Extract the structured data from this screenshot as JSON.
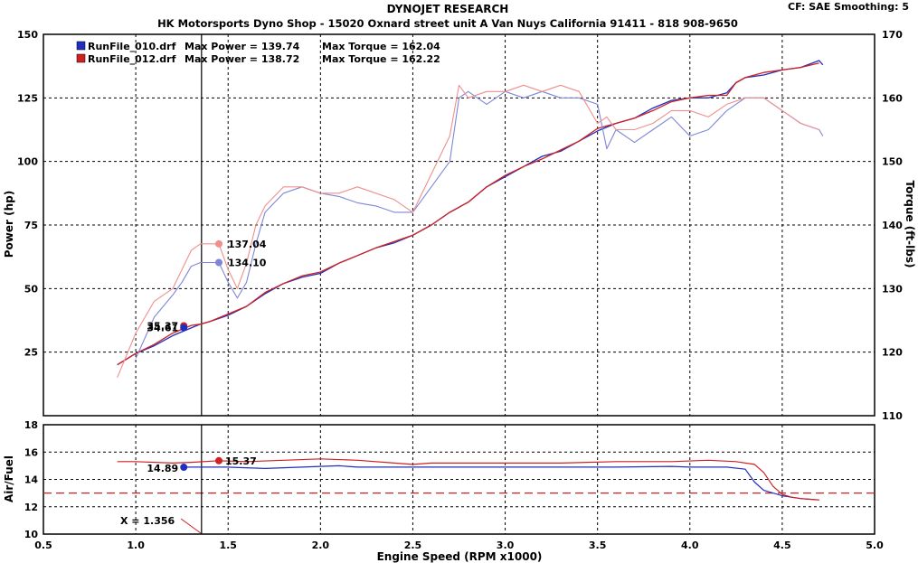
{
  "header": {
    "title": "DYNOJET RESEARCH",
    "subtitle": "HK Motorsports Dyno Shop - 15020 Oxnard street unit A Van Nuys California 91411 - 818 908-9650",
    "settings": "CF: SAE  Smoothing: 5"
  },
  "legend": [
    {
      "file": "RunFile_010.drf",
      "power_text": "Max Power = 139.74",
      "torque_text": "Max Torque = 162.04",
      "color": "#1f2fbf",
      "light_color": "#7f86d8"
    },
    {
      "file": "RunFile_012.drf",
      "power_text": "Max Power = 138.72",
      "torque_text": "Max Torque = 162.22",
      "color": "#d02020",
      "light_color": "#ef8f8f"
    }
  ],
  "chart_data": [
    {
      "type": "line",
      "name": "power-torque",
      "xlim": [
        0.5,
        5.0
      ],
      "ylim": [
        0,
        150
      ],
      "y2lim": [
        110,
        170
      ],
      "ylabel": "Power (hp)",
      "y2label": "Torque (ft-lbs)",
      "x_ticks": [
        "0.5",
        "1.0",
        "1.5",
        "2.0",
        "2.5",
        "3.0",
        "3.5",
        "4.0",
        "4.5",
        "5.0"
      ],
      "y_ticks": [
        "150",
        "125",
        "100",
        "75",
        "50",
        "25"
      ],
      "y2_ticks": [
        "170",
        "160",
        "150",
        "140",
        "130",
        "120",
        "110"
      ],
      "grid": true,
      "cursor_x": 1.356,
      "series": [
        {
          "name": "RunFile_010.drf",
          "quantity": "power",
          "axis": "left",
          "x": [
            0.9,
            1.0,
            1.1,
            1.2,
            1.3,
            1.35,
            1.4,
            1.5,
            1.6,
            1.7,
            1.8,
            1.9,
            2.0,
            2.1,
            2.2,
            2.3,
            2.4,
            2.5,
            2.6,
            2.7,
            2.8,
            2.9,
            3.0,
            3.1,
            3.2,
            3.3,
            3.4,
            3.5,
            3.6,
            3.7,
            3.8,
            3.9,
            4.0,
            4.1,
            4.2,
            4.25,
            4.3,
            4.4,
            4.5,
            4.6,
            4.7,
            4.72
          ],
          "values": [
            20,
            24.5,
            27.5,
            31.5,
            34.5,
            36,
            37,
            39.5,
            43,
            48,
            52,
            54.5,
            56,
            60,
            63,
            66,
            68,
            71,
            75,
            80,
            84,
            90,
            94,
            98,
            102,
            104,
            108,
            112,
            115,
            117,
            121,
            124,
            125,
            125,
            127,
            131,
            133,
            134,
            136,
            137,
            139.7,
            138
          ]
        },
        {
          "name": "RunFile_012.drf",
          "quantity": "power",
          "axis": "left",
          "x": [
            0.9,
            1.0,
            1.1,
            1.2,
            1.3,
            1.35,
            1.4,
            1.5,
            1.6,
            1.7,
            1.8,
            1.9,
            2.0,
            2.1,
            2.2,
            2.3,
            2.4,
            2.5,
            2.6,
            2.7,
            2.8,
            2.9,
            3.0,
            3.1,
            3.2,
            3.3,
            3.4,
            3.5,
            3.6,
            3.7,
            3.8,
            3.9,
            4.0,
            4.1,
            4.2,
            4.25,
            4.3,
            4.4,
            4.5,
            4.6,
            4.7
          ],
          "values": [
            20,
            24.5,
            28,
            32.5,
            35.5,
            36,
            37,
            40,
            43,
            48.5,
            52,
            55,
            56.5,
            60,
            63,
            66,
            68.5,
            71,
            75,
            80,
            84,
            90,
            94.5,
            98,
            101,
            104.5,
            108,
            113,
            115,
            117,
            120,
            123.5,
            125,
            126,
            126,
            131,
            133,
            135,
            136,
            137,
            138.7
          ]
        },
        {
          "name": "RunFile_010.drf",
          "quantity": "torque",
          "axis": "right",
          "x": [
            1.0,
            1.1,
            1.2,
            1.25,
            1.3,
            1.35,
            1.4,
            1.45,
            1.5,
            1.55,
            1.6,
            1.65,
            1.7,
            1.8,
            1.9,
            2.0,
            2.1,
            2.2,
            2.3,
            2.4,
            2.5,
            2.6,
            2.7,
            2.75,
            2.8,
            2.9,
            3.0,
            3.1,
            3.2,
            3.3,
            3.4,
            3.5,
            3.55,
            3.6,
            3.7,
            3.8,
            3.9,
            4.0,
            4.1,
            4.2,
            4.3,
            4.4,
            4.5,
            4.6,
            4.7,
            4.72
          ],
          "values": [
            119,
            125.5,
            129,
            131,
            133.5,
            134.1,
            134.1,
            134.1,
            131,
            128.5,
            131,
            137,
            142,
            145,
            146,
            145,
            144.5,
            143.5,
            143,
            142,
            142,
            146,
            150,
            160,
            161,
            159,
            161,
            160,
            161,
            160,
            160,
            159,
            152,
            155,
            153,
            155,
            157,
            154,
            155,
            158,
            160,
            160,
            158,
            156,
            155,
            154
          ]
        },
        {
          "name": "RunFile_012.drf",
          "quantity": "torque",
          "axis": "right",
          "x": [
            0.9,
            1.0,
            1.1,
            1.2,
            1.25,
            1.3,
            1.35,
            1.4,
            1.45,
            1.5,
            1.55,
            1.6,
            1.65,
            1.7,
            1.8,
            1.9,
            2.0,
            2.1,
            2.2,
            2.3,
            2.4,
            2.5,
            2.6,
            2.7,
            2.75,
            2.8,
            2.9,
            3.0,
            3.1,
            3.2,
            3.3,
            3.4,
            3.5,
            3.55,
            3.6,
            3.7,
            3.8,
            3.9,
            4.0,
            4.1,
            4.2,
            4.3,
            4.4,
            4.5,
            4.6,
            4.7
          ],
          "values": [
            116,
            123,
            128,
            130,
            133,
            136,
            137.04,
            137.04,
            137.04,
            133,
            130,
            134,
            140,
            143,
            146,
            146,
            145,
            145,
            146,
            145,
            144,
            142,
            148,
            154,
            162,
            160,
            161,
            161,
            162,
            161,
            162,
            161,
            156,
            157,
            155,
            155,
            156,
            158,
            158,
            157,
            159,
            160,
            160,
            158,
            156,
            155
          ]
        }
      ],
      "annotations": [
        {
          "label": "137.04",
          "x": 1.45,
          "y": 137.04,
          "axis": "right",
          "color": "#ef8f8f"
        },
        {
          "label": "134.10",
          "x": 1.45,
          "y": 134.1,
          "axis": "right",
          "color": "#7f86d8"
        },
        {
          "label": "35.37",
          "x": 1.26,
          "y": 35.37,
          "axis": "left",
          "color": "#d02020"
        },
        {
          "label": "34.61",
          "x": 1.26,
          "y": 34.61,
          "axis": "left",
          "color": "#1f2fbf"
        }
      ]
    },
    {
      "type": "line",
      "name": "air-fuel",
      "xlim": [
        0.5,
        5.0
      ],
      "ylim": [
        10,
        18
      ],
      "xlabel": "Engine Speed (RPM x1000)",
      "ylabel": "Air/Fuel",
      "y_ticks": [
        "18",
        "16",
        "14",
        "12",
        "10"
      ],
      "grid": true,
      "reference_line": 13,
      "cursor_label": "X = 1.356",
      "series": [
        {
          "name": "RunFile_010.drf",
          "x": [
            1.25,
            1.3,
            1.5,
            1.7,
            1.9,
            2.0,
            2.1,
            2.2,
            2.3,
            2.5,
            2.7,
            3.0,
            3.3,
            3.6,
            3.9,
            4.0,
            4.2,
            4.3,
            4.35,
            4.4,
            4.5,
            4.6,
            4.7
          ],
          "values": [
            14.89,
            14.9,
            14.9,
            14.8,
            14.9,
            14.95,
            15,
            14.9,
            14.9,
            14.9,
            14.9,
            14.9,
            14.9,
            14.9,
            14.95,
            14.9,
            14.9,
            14.75,
            13.8,
            13.2,
            12.8,
            12.6,
            12.5
          ]
        },
        {
          "name": "RunFile_012.drf",
          "x": [
            0.9,
            1.0,
            1.2,
            1.3,
            1.45,
            1.6,
            1.8,
            2.0,
            2.2,
            2.4,
            2.5,
            2.6,
            2.9,
            3.3,
            3.6,
            3.9,
            4.1,
            4.25,
            4.35,
            4.4,
            4.45,
            4.5,
            4.55,
            4.6,
            4.7
          ],
          "values": [
            15.3,
            15.3,
            15.2,
            15.25,
            15.37,
            15.3,
            15.4,
            15.5,
            15.4,
            15.2,
            15.1,
            15.2,
            15.2,
            15.2,
            15.3,
            15.3,
            15.4,
            15.3,
            15.1,
            14.5,
            13.5,
            12.9,
            12.7,
            12.6,
            12.5
          ]
        }
      ],
      "annotations": [
        {
          "label": "15.37",
          "x": 1.45,
          "y": 15.37,
          "color": "#d02020"
        },
        {
          "label": "14.89",
          "x": 1.26,
          "y": 14.89,
          "color": "#1f2fbf"
        }
      ]
    }
  ]
}
